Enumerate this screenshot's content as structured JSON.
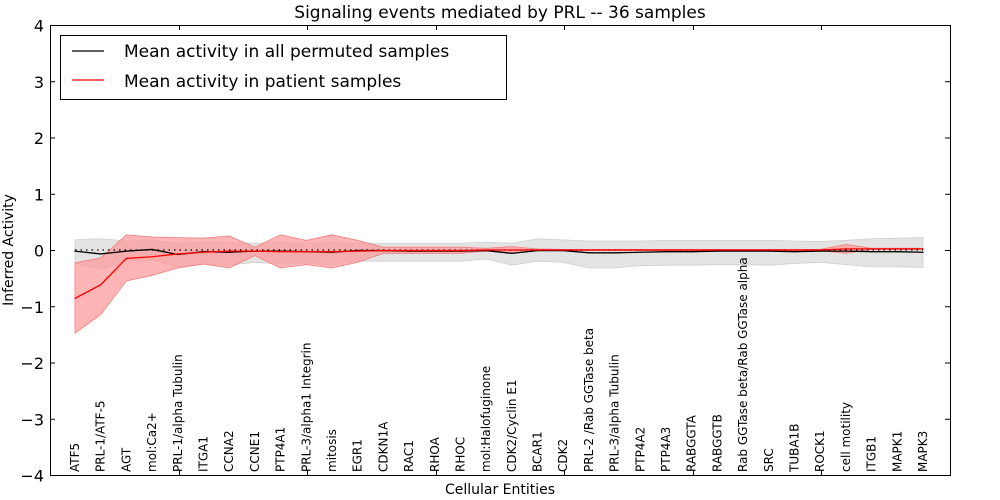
{
  "chart_data": {
    "type": "line",
    "title": "Signaling events mediated by PRL -- 36 samples",
    "xlabel": "Cellular Entities",
    "ylabel": "Inferred Activity",
    "ylim": [
      -4,
      4
    ],
    "yticks": [
      -4,
      -3,
      -2,
      -1,
      0,
      1,
      2,
      3,
      4
    ],
    "ytick_labels": [
      "−4",
      "−3",
      "−2",
      "−1",
      "0",
      "1",
      "2",
      "3",
      "4"
    ],
    "grid": false,
    "legend_position": "top-left",
    "reference_line": {
      "y": 0,
      "style": "dotted",
      "color": "#000000"
    },
    "categories": [
      "ATF5",
      "PRL-1/ATF-5",
      "AGT",
      "mol:Ca2+",
      "PRL-1/alpha Tubulin",
      "ITGA1",
      "CCNA2",
      "CCNE1",
      "PTP4A1",
      "PRL-3/alpha1 Integrin",
      "mitosis",
      "EGR1",
      "CDKN1A",
      "RAC1",
      "RHOA",
      "RHOC",
      "mol:Halofuginone",
      "CDK2/Cyclin E1",
      "BCAR1",
      "CDK2",
      "PRL-2 /Rab GGTase beta",
      "PRL-3/alpha Tubulin",
      "PTP4A2",
      "PTP4A3",
      "RABGGTA",
      "RABGGTB",
      "Rab GGTase beta/Rab GGTase alpha",
      "SRC",
      "TUBA1B",
      "ROCK1",
      "cell motility",
      "ITGB1",
      "MAPK1",
      "MAPK3"
    ],
    "series": [
      {
        "name": "Mean activity in all permuted samples",
        "color": "#000000",
        "band_color": "#d9d9d9",
        "values": [
          -0.02,
          -0.07,
          -0.02,
          0.01,
          -0.08,
          -0.03,
          -0.04,
          -0.02,
          -0.02,
          -0.03,
          -0.04,
          -0.01,
          -0.01,
          -0.02,
          -0.02,
          -0.02,
          -0.01,
          -0.06,
          -0.01,
          -0.01,
          -0.05,
          -0.05,
          -0.04,
          -0.03,
          -0.03,
          -0.02,
          -0.02,
          -0.02,
          -0.03,
          -0.02,
          -0.02,
          -0.03,
          -0.03,
          -0.04
        ],
        "upper": [
          0.18,
          0.2,
          0.16,
          0.17,
          0.12,
          0.14,
          0.13,
          0.12,
          0.13,
          0.12,
          0.13,
          0.12,
          0.12,
          0.12,
          0.12,
          0.12,
          0.14,
          0.12,
          0.2,
          0.18,
          0.16,
          0.16,
          0.16,
          0.17,
          0.17,
          0.17,
          0.17,
          0.17,
          0.16,
          0.15,
          0.17,
          0.2,
          0.21,
          0.22
        ],
        "lower": [
          -0.23,
          -0.35,
          -0.2,
          -0.18,
          -0.3,
          -0.25,
          -0.27,
          -0.22,
          -0.25,
          -0.24,
          -0.26,
          -0.2,
          -0.2,
          -0.2,
          -0.2,
          -0.2,
          -0.16,
          -0.27,
          -0.2,
          -0.22,
          -0.32,
          -0.32,
          -0.28,
          -0.27,
          -0.27,
          -0.26,
          -0.26,
          -0.27,
          -0.24,
          -0.22,
          -0.26,
          -0.3,
          -0.3,
          -0.31
        ]
      },
      {
        "name": "Mean activity in patient samples",
        "color": "#ff0000",
        "band_color": "#ff9999",
        "values": [
          -0.86,
          -0.62,
          -0.15,
          -0.12,
          -0.07,
          -0.04,
          -0.02,
          -0.02,
          -0.03,
          -0.03,
          -0.03,
          -0.02,
          -0.01,
          -0.01,
          -0.01,
          -0.01,
          0.0,
          0.0,
          0.0,
          0.0,
          0.0,
          0.0,
          0.0,
          0.0,
          0.0,
          0.0,
          0.0,
          0.0,
          0.0,
          0.0,
          0.02,
          0.02,
          0.02,
          0.02
        ],
        "upper": [
          -0.23,
          -0.14,
          0.27,
          0.23,
          0.22,
          0.21,
          0.25,
          0.05,
          0.27,
          0.17,
          0.27,
          0.17,
          0.05,
          0.05,
          0.05,
          0.05,
          0.03,
          0.06,
          0.02,
          0.01,
          0.01,
          0.01,
          0.01,
          0.01,
          0.01,
          0.01,
          0.01,
          0.01,
          0.01,
          0.01,
          0.1,
          0.03,
          0.03,
          0.03
        ],
        "lower": [
          -1.48,
          -1.15,
          -0.55,
          -0.45,
          -0.32,
          -0.25,
          -0.32,
          -0.1,
          -0.32,
          -0.26,
          -0.32,
          -0.22,
          -0.06,
          -0.06,
          -0.06,
          -0.06,
          -0.02,
          -0.05,
          -0.01,
          -0.01,
          -0.01,
          -0.01,
          -0.01,
          -0.01,
          -0.01,
          -0.01,
          -0.01,
          -0.01,
          -0.01,
          -0.01,
          -0.06,
          0.01,
          0.01,
          0.01
        ]
      }
    ]
  }
}
